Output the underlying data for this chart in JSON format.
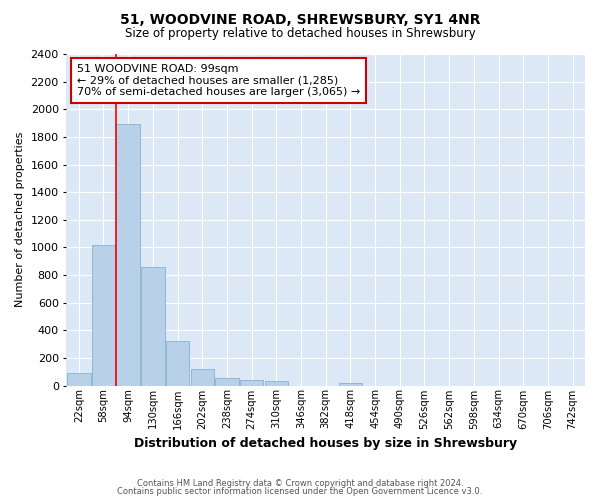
{
  "title1": "51, WOODVINE ROAD, SHREWSBURY, SY1 4NR",
  "title2": "Size of property relative to detached houses in Shrewsbury",
  "xlabel": "Distribution of detached houses by size in Shrewsbury",
  "ylabel": "Number of detached properties",
  "footnote1": "Contains HM Land Registry data © Crown copyright and database right 2024.",
  "footnote2": "Contains public sector information licensed under the Open Government Licence v3.0.",
  "annotation_line1": "51 WOODVINE ROAD: 99sqm",
  "annotation_line2": "← 29% of detached houses are smaller (1,285)",
  "annotation_line3": "70% of semi-detached houses are larger (3,065) →",
  "bar_labels": [
    "22sqm",
    "58sqm",
    "94sqm",
    "130sqm",
    "166sqm",
    "202sqm",
    "238sqm",
    "274sqm",
    "310sqm",
    "346sqm",
    "382sqm",
    "418sqm",
    "454sqm",
    "490sqm",
    "526sqm",
    "562sqm",
    "598sqm",
    "634sqm",
    "670sqm",
    "706sqm",
    "742sqm"
  ],
  "bar_values": [
    90,
    1020,
    1890,
    860,
    320,
    120,
    55,
    40,
    30,
    0,
    0,
    20,
    0,
    0,
    0,
    0,
    0,
    0,
    0,
    0,
    0
  ],
  "bar_color": "#b8d0e8",
  "bar_edge_color": "#8ab0d0",
  "red_line_x": 1.5,
  "ylim": [
    0,
    2400
  ],
  "yticks": [
    0,
    200,
    400,
    600,
    800,
    1000,
    1200,
    1400,
    1600,
    1800,
    2000,
    2200,
    2400
  ],
  "annotation_box_color": "#ffffff",
  "annotation_border_color": "#cc0000",
  "figure_bg_color": "#ffffff",
  "plot_bg_color": "#dce8f5"
}
